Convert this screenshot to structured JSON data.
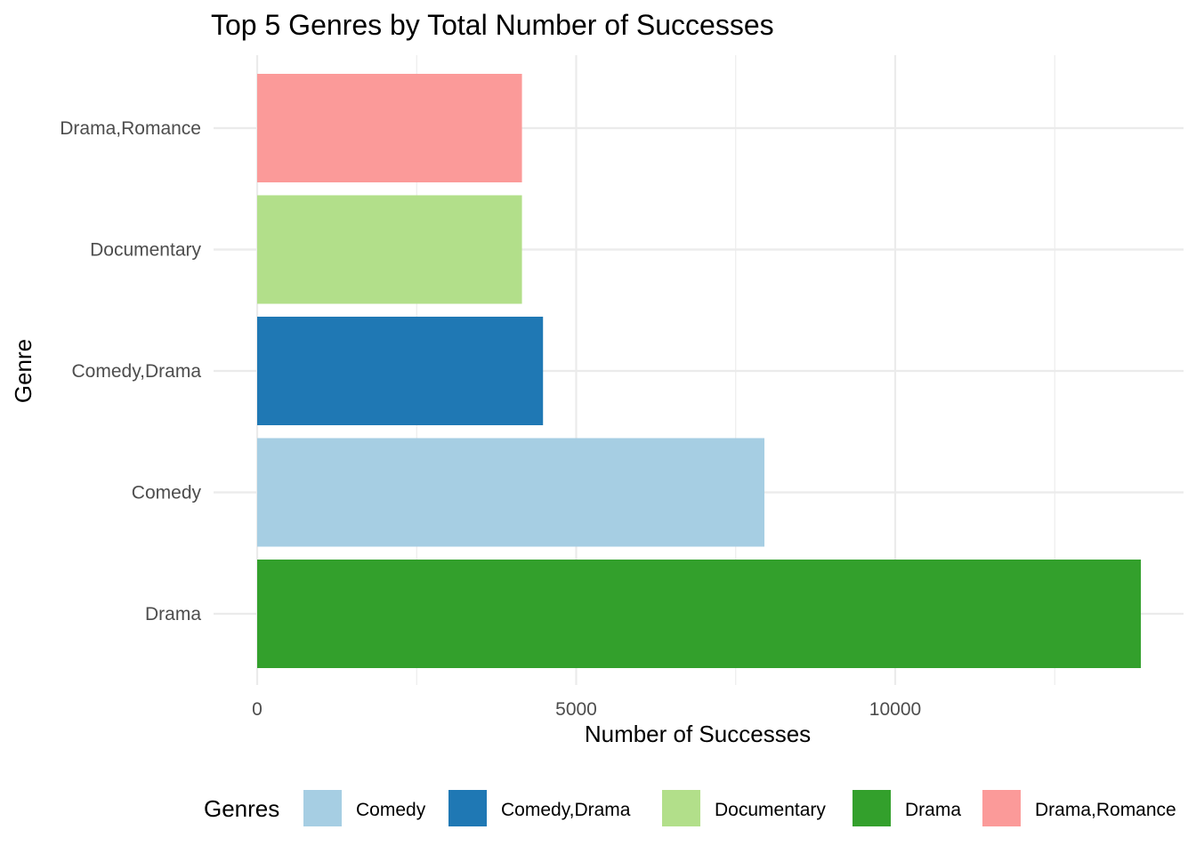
{
  "chart_data": {
    "type": "bar",
    "orientation": "horizontal",
    "title": "Top 5 Genres by Total Number of Successes",
    "xlabel": "Number of Successes",
    "ylabel": "Genre",
    "categories": [
      "Drama",
      "Comedy",
      "Comedy,Drama",
      "Documentary",
      "Drama,Romance"
    ],
    "values": [
      13850,
      7950,
      4480,
      4150,
      4150
    ],
    "colors": [
      "#33a02c",
      "#a6cee3",
      "#1f78b4",
      "#b2df8a",
      "#fb9a99"
    ],
    "xlim": [
      0,
      14500
    ],
    "xticks": [
      0,
      5000,
      10000
    ],
    "xtick_labels": [
      "0",
      "5000",
      "10000"
    ],
    "grid": true,
    "legend": {
      "title": "Genres",
      "position": "bottom",
      "entries": [
        {
          "label": "Comedy",
          "color": "#a6cee3"
        },
        {
          "label": "Comedy,Drama",
          "color": "#1f78b4"
        },
        {
          "label": "Documentary",
          "color": "#b2df8a"
        },
        {
          "label": "Drama",
          "color": "#33a02c"
        },
        {
          "label": "Drama,Romance",
          "color": "#fb9a99"
        }
      ]
    }
  }
}
